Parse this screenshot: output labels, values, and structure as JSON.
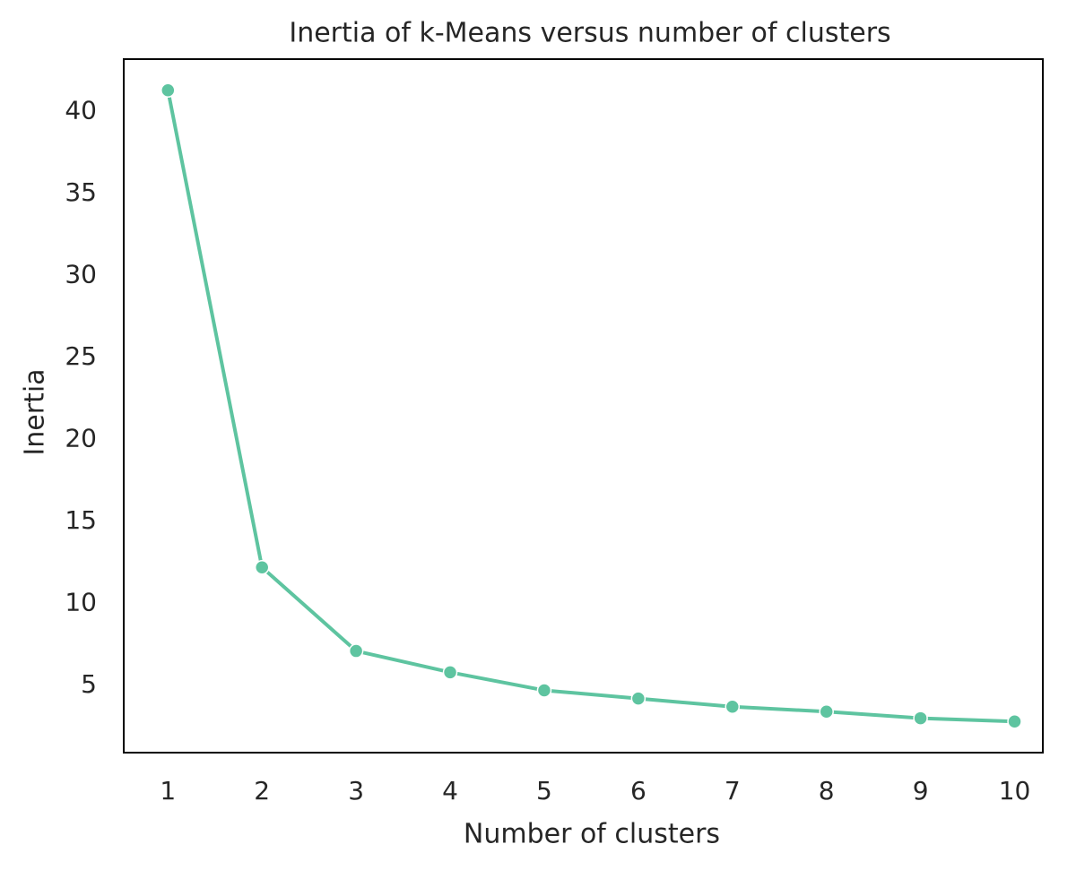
{
  "chart_data": {
    "type": "line",
    "title": "Inertia of k-Means versus number of clusters",
    "x_label": "Number of clusters",
    "y_label": "Inertia",
    "x": [
      1,
      2,
      3,
      4,
      5,
      6,
      7,
      8,
      9,
      10
    ],
    "values": [
      41.3,
      12.2,
      7.1,
      5.8,
      4.7,
      4.2,
      3.7,
      3.4,
      3.0,
      2.8
    ],
    "color": "#5ec4a0",
    "xlim": [
      0.53,
      10.3
    ],
    "xticks": [
      1,
      2,
      3,
      4,
      5,
      6,
      7,
      8,
      9,
      10
    ],
    "ylim": [
      0.9,
      43.2
    ],
    "yticks": [
      5,
      10,
      15,
      20,
      25,
      30,
      35,
      40
    ],
    "grid": false
  }
}
